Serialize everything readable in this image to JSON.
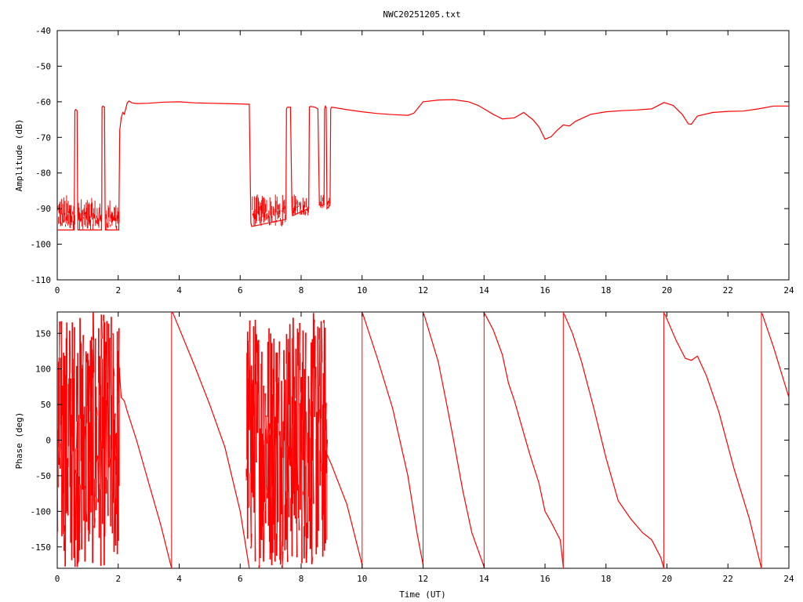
{
  "title": "NWC20251205.txt",
  "colors": {
    "trace": "#ff0000",
    "axis": "#000000",
    "background": "#ffffff"
  },
  "chart_data": [
    {
      "type": "line",
      "title": "NWC20251205.txt",
      "xlabel": "",
      "ylabel": "Amplitude (dB)",
      "xlim": [
        0,
        24
      ],
      "ylim": [
        -110,
        -40
      ],
      "x_ticks": [
        0,
        2,
        4,
        6,
        8,
        10,
        12,
        14,
        16,
        18,
        20,
        22,
        24
      ],
      "y_ticks": [
        -110,
        -100,
        -90,
        -80,
        -70,
        -60,
        -50,
        -40
      ],
      "grid": false,
      "legend": "none",
      "noise_bands": [
        {
          "x": [
            0,
            0.58
          ],
          "low": -96,
          "high": -86
        },
        {
          "x": [
            0.68,
            1.45
          ],
          "low": -96,
          "high": -87
        },
        {
          "x": [
            1.6,
            2.05
          ],
          "low": -96,
          "high": -87
        },
        {
          "x": [
            6.4,
            7.5
          ],
          "low": -95,
          "high": -86
        },
        {
          "x": [
            7.72,
            8.25
          ],
          "low": -92,
          "high": -86
        },
        {
          "x": [
            8.6,
            8.75
          ],
          "low": -90,
          "high": -86
        },
        {
          "x": [
            8.85,
            8.95
          ],
          "low": -90,
          "high": -86
        }
      ],
      "series": [
        {
          "x": [
            0,
            0.55,
            0.56,
            0.58,
            0.6,
            0.65,
            0.67,
            0.68,
            1.45,
            1.46,
            1.47,
            1.5,
            1.55,
            1.57,
            1.58,
            2.02,
            2.05,
            2.1,
            2.15,
            2.2,
            2.3,
            2.35,
            2.45,
            2.6,
            3.0,
            3.5,
            4.0,
            4.5,
            5.0,
            5.5,
            6.0,
            6.3,
            6.35,
            6.38,
            7.5,
            7.52,
            7.55,
            7.65,
            7.7,
            7.72,
            8.25,
            8.27,
            8.3,
            8.45,
            8.55,
            8.6,
            8.75,
            8.77,
            8.8,
            8.82,
            8.85,
            8.95,
            8.97,
            9.0,
            9.5,
            10.0,
            10.5,
            11.0,
            11.5,
            11.7,
            12.0,
            12.5,
            13.0,
            13.5,
            13.8,
            14.0,
            14.3,
            14.6,
            15.0,
            15.3,
            15.6,
            15.8,
            16.0,
            16.2,
            16.4,
            16.6,
            16.8,
            17.0,
            17.5,
            18.0,
            18.5,
            19.0,
            19.5,
            19.9,
            20.2,
            20.5,
            20.7,
            20.8,
            21.0,
            21.5,
            22.0,
            22.5,
            23.0,
            23.5,
            24.0
          ],
          "values": [
            -96,
            -96,
            -89,
            -62.5,
            -62.2,
            -62.5,
            -90,
            -96,
            -96,
            -89,
            -61.5,
            -61.2,
            -61.5,
            -90,
            -96,
            -96,
            -68,
            -64.5,
            -63,
            -63.5,
            -60.2,
            -59.8,
            -60.3,
            -60.5,
            -60.4,
            -60.1,
            -60,
            -60.3,
            -60.4,
            -60.5,
            -60.6,
            -60.7,
            -94,
            -95,
            -93,
            -62,
            -61.5,
            -61.5,
            -90,
            -92,
            -90,
            -61.5,
            -61.3,
            -61.5,
            -62,
            -89,
            -89,
            -62,
            -61.2,
            -61.5,
            -90,
            -89,
            -62,
            -61.5,
            -62.2,
            -62.8,
            -63.3,
            -63.6,
            -63.8,
            -63.2,
            -60,
            -59.5,
            -59.4,
            -60,
            -61,
            -62,
            -63.5,
            -64.8,
            -64.5,
            -63,
            -65,
            -67,
            -70.5,
            -69.8,
            -68,
            -66.5,
            -66.8,
            -65.5,
            -63.5,
            -62.8,
            -62.5,
            -62.3,
            -62,
            -60.2,
            -61,
            -63.5,
            -66.2,
            -66.3,
            -64,
            -63,
            -62.7,
            -62.6,
            -62,
            -61.2,
            -61.2
          ]
        }
      ]
    },
    {
      "type": "line",
      "title": "",
      "xlabel": "Time (UT)",
      "ylabel": "Phase (deg)",
      "xlim": [
        0,
        24
      ],
      "ylim": [
        -180,
        180
      ],
      "x_ticks": [
        0,
        2,
        4,
        6,
        8,
        10,
        12,
        14,
        16,
        18,
        20,
        22,
        24
      ],
      "y_ticks": [
        -150,
        -100,
        -50,
        0,
        50,
        100,
        150
      ],
      "grid": false,
      "legend": "none",
      "noise_bands": [
        {
          "x": [
            0,
            2.05
          ],
          "low": -180,
          "high": 180
        },
        {
          "x": [
            6.2,
            8.85
          ],
          "low": -180,
          "high": 180
        }
      ],
      "series": [
        {
          "x": [
            2.0,
            2.1,
            2.2,
            2.3,
            2.6,
            3.0,
            3.4,
            3.75
          ],
          "values": [
            120,
            60,
            55,
            40,
            0,
            -60,
            -120,
            -180
          ]
        },
        {
          "x": [
            3.75,
            3.8,
            4.5,
            5.0,
            5.5,
            6.0,
            6.3
          ],
          "values": [
            180,
            178,
            105,
            50,
            -10,
            -100,
            -180
          ]
        },
        {
          "x": [
            8.85,
            9.0,
            9.5,
            10.0
          ],
          "values": [
            -20,
            -35,
            -90,
            -175
          ]
        },
        {
          "x": [
            10.02,
            10.5,
            11.0,
            11.5,
            11.8,
            12.0
          ],
          "values": [
            178,
            115,
            45,
            -50,
            -130,
            -175
          ]
        },
        {
          "x": [
            12.02,
            12.5,
            12.8,
            13.0,
            13.3,
            13.6,
            14.0
          ],
          "values": [
            178,
            110,
            45,
            0,
            -70,
            -130,
            -178
          ]
        },
        {
          "x": [
            14.02,
            14.3,
            14.6,
            14.8,
            15.0,
            15.3,
            15.5,
            15.8,
            16.0,
            16.2,
            16.5,
            16.6
          ],
          "values": [
            178,
            155,
            120,
            80,
            55,
            10,
            -20,
            -60,
            -100,
            -115,
            -140,
            -178
          ]
        },
        {
          "x": [
            16.62,
            16.9,
            17.2,
            17.6,
            18.0,
            18.4,
            18.8,
            19.2,
            19.5,
            19.8,
            19.9
          ],
          "values": [
            178,
            150,
            110,
            45,
            -25,
            -85,
            -110,
            -130,
            -140,
            -165,
            -180
          ]
        },
        {
          "x": [
            19.92,
            20.3,
            20.6,
            20.8,
            21.0,
            21.3,
            21.7,
            22.2,
            22.7,
            23.1
          ],
          "values": [
            178,
            140,
            115,
            112,
            118,
            90,
            40,
            -40,
            -110,
            -180
          ]
        },
        {
          "x": [
            23.12,
            23.5,
            24.0
          ],
          "values": [
            178,
            130,
            60
          ]
        }
      ],
      "wrap_lines_x": [
        3.75,
        10.0,
        12.0,
        14.0,
        16.6,
        19.9,
        23.1
      ]
    }
  ]
}
